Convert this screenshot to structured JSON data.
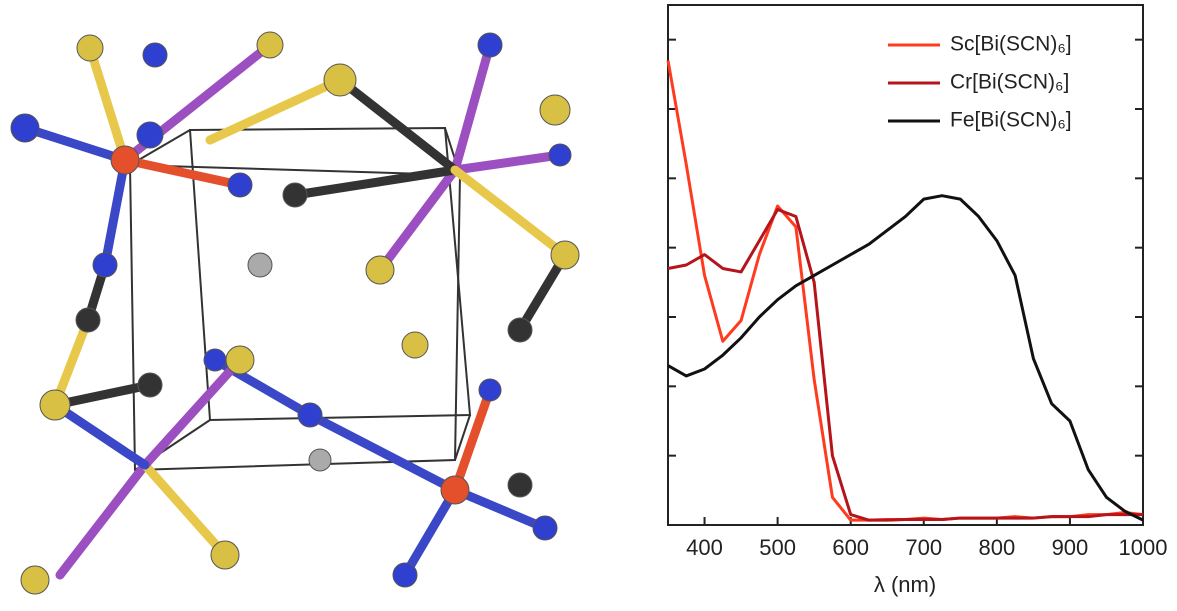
{
  "chart_data": {
    "type": "line",
    "x": [
      350,
      375,
      400,
      425,
      450,
      475,
      500,
      525,
      550,
      575,
      600,
      625,
      650,
      675,
      700,
      725,
      750,
      775,
      800,
      825,
      850,
      875,
      900,
      925,
      950,
      975,
      1000
    ],
    "series": [
      {
        "name": "Sc[Bi(SCN)₆]",
        "color": "#ff3b1f",
        "values": [
          6.7,
          5.2,
          3.6,
          2.65,
          2.95,
          3.9,
          4.6,
          4.3,
          2.1,
          0.4,
          0.07,
          0.07,
          0.08,
          0.08,
          0.1,
          0.08,
          0.1,
          0.1,
          0.1,
          0.12,
          0.1,
          0.12,
          0.12,
          0.15,
          0.15,
          0.18,
          0.15
        ]
      },
      {
        "name": "Cr[Bi(SCN)₆]",
        "color": "#b5141a",
        "values": [
          3.7,
          3.75,
          3.9,
          3.7,
          3.65,
          4.1,
          4.55,
          4.45,
          3.5,
          1.0,
          0.15,
          0.07,
          0.07,
          0.08,
          0.08,
          0.08,
          0.1,
          0.1,
          0.1,
          0.1,
          0.1,
          0.12,
          0.12,
          0.12,
          0.15,
          0.15,
          0.15
        ]
      },
      {
        "name": "Fe[Bi(SCN)₆]",
        "color": "#111111",
        "values": [
          2.3,
          2.15,
          2.25,
          2.45,
          2.7,
          3.0,
          3.25,
          3.45,
          3.6,
          3.75,
          3.9,
          4.05,
          4.25,
          4.45,
          4.7,
          4.75,
          4.7,
          4.45,
          4.1,
          3.6,
          2.4,
          1.75,
          1.5,
          0.8,
          0.4,
          0.2,
          0.07
        ]
      }
    ],
    "xlabel": "λ (nm)",
    "xlim": [
      350,
      1000
    ],
    "xticks": [
      400,
      500,
      600,
      700,
      800,
      900,
      1000
    ],
    "ylim": [
      0,
      7.5
    ],
    "yticks": [
      1,
      2,
      3,
      4,
      5,
      6,
      7
    ],
    "legend": "upper right"
  }
}
